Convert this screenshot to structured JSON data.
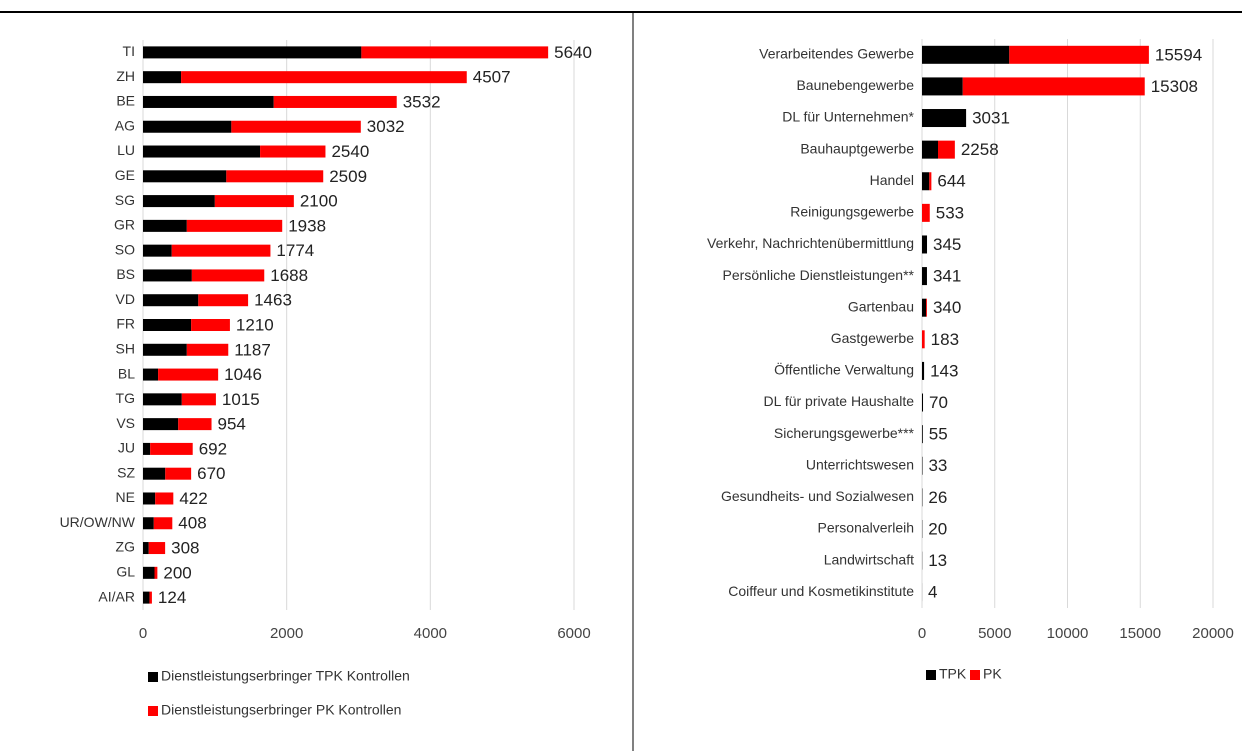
{
  "chart_data": [
    {
      "type": "bar",
      "orientation": "horizontal",
      "categories": [
        "TI",
        "ZH",
        "BE",
        "AG",
        "LU",
        "GE",
        "SG",
        "GR",
        "SO",
        "BS",
        "VD",
        "FR",
        "SH",
        "BL",
        "TG",
        "VS",
        "JU",
        "SZ",
        "NE",
        "UR/OW/NW",
        "ZG",
        "GL",
        "AI/AR"
      ],
      "series": [
        {
          "name": "Dienstleistungserbringer TPK Kontrollen",
          "color": "#000000",
          "values": [
            3040,
            530,
            1820,
            1230,
            1630,
            1160,
            1000,
            610,
            400,
            680,
            770,
            670,
            610,
            210,
            540,
            490,
            100,
            310,
            170,
            150,
            80,
            160,
            90
          ]
        },
        {
          "name": "Dienstleistungserbringer PK Kontrollen",
          "color": "#ff0000",
          "values": [
            2600,
            3977,
            1712,
            1802,
            910,
            1349,
            1100,
            1328,
            1374,
            1008,
            693,
            540,
            577,
            836,
            475,
            464,
            592,
            360,
            252,
            258,
            228,
            40,
            34
          ]
        }
      ],
      "totals": [
        5640,
        4507,
        3532,
        3032,
        2540,
        2509,
        2100,
        1938,
        1774,
        1688,
        1463,
        1210,
        1187,
        1046,
        1015,
        954,
        692,
        670,
        422,
        408,
        308,
        200,
        124
      ],
      "xlim": [
        0,
        6000
      ],
      "xticks": [
        0,
        2000,
        4000,
        6000
      ],
      "grid": true
    },
    {
      "type": "bar",
      "orientation": "horizontal",
      "categories": [
        "Verarbeitendes Gewerbe",
        "Baunebengewerbe",
        "DL für Unternehmen*",
        "Bauhauptgewerbe",
        "Handel",
        "Reinigungsgewerbe",
        "Verkehr, Nachrichtenübermittlung",
        "Persönliche Dienstleistungen**",
        "Gartenbau",
        "Gastgewerbe",
        "Öffentliche Verwaltung",
        "DL für private Haushalte",
        "Sicherungsgewerbe***",
        "Unterrichtswesen",
        "Gesundheits- und Sozialwesen",
        "Personalverleih",
        "Landwirtschaft",
        "Coiffeur und Kosmetikinstitute"
      ],
      "series": [
        {
          "name": "TPK",
          "color": "#000000",
          "values": [
            6000,
            2800,
            3031,
            1100,
            500,
            0,
            345,
            341,
            280,
            0,
            143,
            70,
            55,
            33,
            26,
            20,
            13,
            4
          ]
        },
        {
          "name": "PK",
          "color": "#ff0000",
          "values": [
            9594,
            12508,
            0,
            1158,
            144,
            533,
            0,
            0,
            60,
            183,
            0,
            0,
            0,
            0,
            0,
            0,
            0,
            0
          ]
        }
      ],
      "totals": [
        15594,
        15308,
        3031,
        2258,
        644,
        533,
        345,
        341,
        340,
        183,
        143,
        70,
        55,
        33,
        26,
        20,
        13,
        4
      ],
      "xlim": [
        0,
        20000
      ],
      "xticks": [
        0,
        5000,
        10000,
        15000,
        20000
      ],
      "grid": true
    }
  ]
}
